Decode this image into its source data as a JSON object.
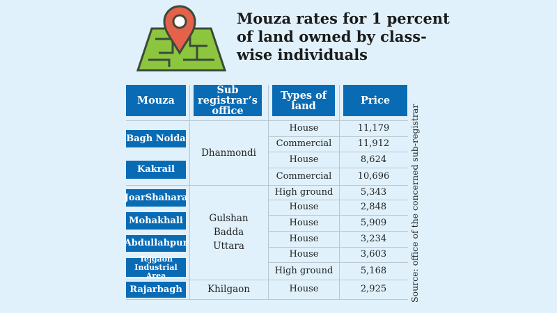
{
  "title": "Mouza rates for 1 percent of land owned by class-wise individuals",
  "source": "Source: office of the concerned sub-registrar",
  "colors": {
    "background": "#e0f1fb",
    "header": "#0a6bb5",
    "pin": "#e5614a",
    "map": "#8cc63f"
  },
  "icon": "map-pin-icon",
  "chart_data": {
    "type": "table",
    "columns": [
      "Mouza",
      "Sub registrar’s office",
      "Types of land",
      "Price"
    ],
    "mouzas": [
      {
        "name": "Bagh Noida",
        "office": "Dhanmondi",
        "rows": [
          [
            "House",
            "11,179"
          ],
          [
            "Commercial",
            "11,912"
          ]
        ]
      },
      {
        "name": "Kakrail",
        "office": "Dhanmondi",
        "rows": [
          [
            "House",
            "8,624"
          ],
          [
            "Commercial",
            "10,696"
          ]
        ]
      },
      {
        "name": "JoarShahara",
        "office": "Gulshan Badda Uttara",
        "rows": [
          [
            "High ground",
            "5,343"
          ],
          [
            "House",
            "2,848"
          ]
        ]
      },
      {
        "name": "Mohakhali",
        "office": "Gulshan Badda Uttara",
        "rows": [
          [
            "House",
            "5,909"
          ]
        ]
      },
      {
        "name": "Abdullahpur",
        "office": "Gulshan Badda Uttara",
        "rows": [
          [
            "House",
            "3,234"
          ]
        ]
      },
      {
        "name": "Tejgaon Industrial  Area",
        "office": "Gulshan Badda Uttara",
        "rows": [
          [
            "House",
            "3,603"
          ],
          [
            "High ground",
            "5,168"
          ]
        ]
      },
      {
        "name": "Rajarbagh",
        "office": "Khilgaon",
        "rows": [
          [
            "House",
            "2,925"
          ]
        ]
      }
    ],
    "offices": [
      {
        "lines": [
          "Dhanmondi"
        ]
      },
      {
        "lines": [
          "Gulshan",
          "Badda",
          "Uttara"
        ]
      },
      {
        "lines": [
          "Khilgaon"
        ]
      }
    ]
  }
}
